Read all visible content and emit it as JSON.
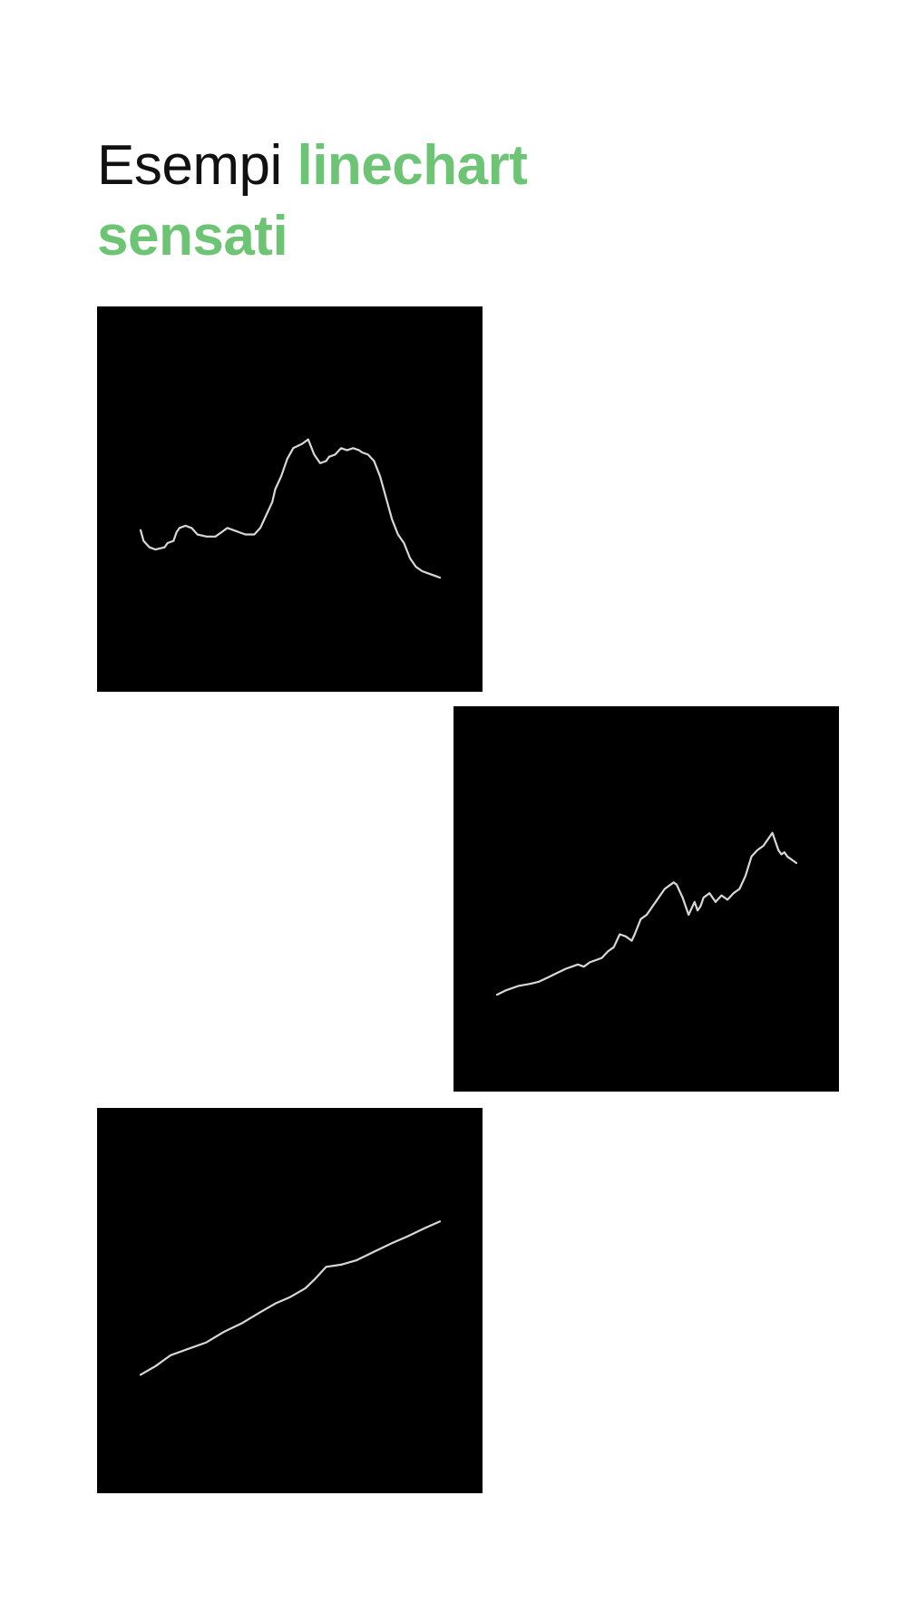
{
  "heading": {
    "prefix": "Esempi",
    "highlight": "linechart sensati",
    "highlight_color": "#6dc474"
  },
  "line_color": "#d8d8d8",
  "chart_data": [
    {
      "type": "line",
      "title": "",
      "xlabel": "",
      "ylabel": "",
      "grid": false,
      "legend": "none",
      "xlim": [
        0,
        100
      ],
      "ylim": [
        0,
        100
      ],
      "series": [
        {
          "x": [
            0,
            1,
            3,
            5,
            8,
            9,
            11,
            12,
            13,
            15,
            17,
            19,
            22,
            25,
            27,
            29,
            31,
            33,
            35,
            38,
            40,
            42,
            44,
            45,
            47,
            49,
            51,
            54,
            56,
            58,
            60,
            62,
            63,
            65,
            67,
            69,
            71,
            73,
            74,
            76,
            78,
            80,
            82,
            84,
            86,
            88,
            90,
            92,
            94,
            96,
            98,
            100
          ],
          "y": [
            35,
            30,
            27,
            26,
            27,
            29,
            30,
            34,
            36,
            37,
            36,
            33,
            32,
            32,
            34,
            36,
            35,
            34,
            33,
            33,
            36,
            42,
            48,
            54,
            60,
            68,
            73,
            75,
            77,
            70,
            66,
            67,
            69,
            70,
            73,
            72,
            73,
            72,
            71,
            70,
            67,
            60,
            50,
            40,
            33,
            29,
            22,
            18,
            16,
            15,
            14,
            13
          ]
        }
      ]
    },
    {
      "type": "line",
      "title": "",
      "xlabel": "",
      "ylabel": "",
      "grid": false,
      "legend": "none",
      "xlim": [
        0,
        100
      ],
      "ylim": [
        0,
        100
      ],
      "series": [
        {
          "x": [
            0,
            3,
            7,
            11,
            14,
            17,
            20,
            23,
            25,
            27,
            29,
            31,
            33,
            35,
            37,
            39,
            41,
            43,
            45,
            46,
            48,
            50,
            52,
            54,
            56,
            58,
            59,
            60,
            62,
            64,
            65,
            66,
            67,
            68,
            69,
            71,
            73,
            75,
            77,
            79,
            81,
            83,
            85,
            87,
            89,
            91,
            92,
            93,
            94,
            95,
            96,
            97,
            98,
            99,
            100
          ],
          "y": [
            5,
            7,
            9,
            10,
            11,
            13,
            15,
            17,
            18,
            19,
            18,
            20,
            21,
            22,
            25,
            27,
            33,
            32,
            30,
            33,
            40,
            42,
            46,
            50,
            54,
            56,
            57,
            56,
            50,
            42,
            45,
            48,
            44,
            46,
            50,
            52,
            48,
            51,
            49,
            52,
            54,
            60,
            69,
            72,
            74,
            78,
            80,
            76,
            72,
            70,
            71,
            69,
            68,
            67,
            66
          ]
        }
      ]
    },
    {
      "type": "line",
      "title": "",
      "xlabel": "",
      "ylabel": "",
      "grid": false,
      "legend": "none",
      "xlim": [
        0,
        100
      ],
      "ylim": [
        0,
        100
      ],
      "series": [
        {
          "x": [
            0,
            5,
            10,
            16,
            22,
            28,
            34,
            40,
            45,
            50,
            55,
            58,
            62,
            67,
            72,
            78,
            84,
            89,
            95,
            100
          ],
          "y": [
            15,
            19,
            24,
            27,
            30,
            35,
            39,
            44,
            48,
            51,
            55,
            59,
            65,
            66,
            68,
            72,
            76,
            79,
            83,
            86
          ]
        }
      ]
    }
  ]
}
